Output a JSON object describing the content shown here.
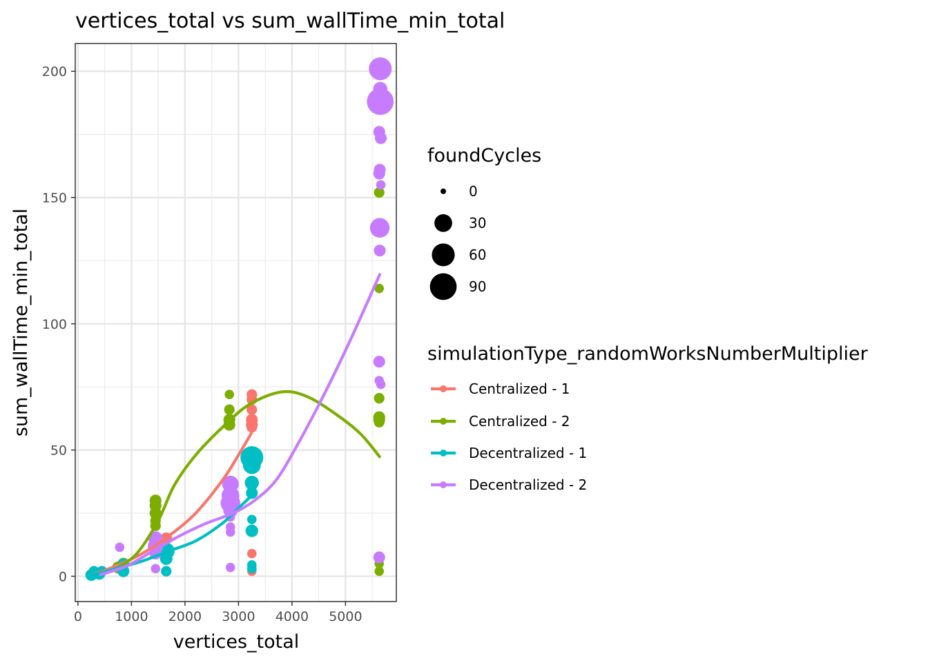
{
  "chart_data": {
    "type": "scatter",
    "title": "vertices_total  vs  sum_wallTime_min_total",
    "xlabel": "vertices_total",
    "ylabel": "sum_wallTime_min_total",
    "xlim": [
      -50,
      5950
    ],
    "ylim": [
      -10,
      211
    ],
    "x_ticks": [
      0,
      1000,
      2000,
      3000,
      4000,
      5000
    ],
    "x_tick_labels": [
      "0",
      "1000",
      "2000",
      "3000",
      "4000",
      "5000"
    ],
    "y_ticks": [
      0,
      50,
      100,
      150,
      200
    ],
    "y_tick_labels": [
      "0",
      "50",
      "100",
      "150",
      "200"
    ],
    "grid": true,
    "legend_position": "right",
    "size_legend": {
      "title": "foundCycles",
      "levels": [
        0,
        30,
        60,
        90
      ],
      "labels": [
        "0",
        "30",
        "60",
        "90"
      ]
    },
    "color_legend": {
      "title": "simulationType_randomWorksNumberMultiplier"
    },
    "series": [
      {
        "name": "Centralized - 1",
        "color": "#F8766D",
        "trend": [
          [
            250,
            0.5
          ],
          [
            700,
            4
          ],
          [
            1200,
            9
          ],
          [
            1700,
            16
          ],
          [
            2200,
            25
          ],
          [
            2700,
            38
          ],
          [
            3000,
            48
          ],
          [
            3250,
            57
          ]
        ],
        "points": [
          {
            "x": 250,
            "y": 0.5,
            "size": 5
          },
          {
            "x": 400,
            "y": 1.5,
            "size": 5
          },
          {
            "x": 800,
            "y": 3,
            "size": 5
          },
          {
            "x": 1450,
            "y": 11,
            "size": 10
          },
          {
            "x": 1650,
            "y": 15,
            "size": 8
          },
          {
            "x": 3250,
            "y": 72,
            "size": 5
          },
          {
            "x": 3250,
            "y": 70,
            "size": 5
          },
          {
            "x": 3250,
            "y": 66,
            "size": 5
          },
          {
            "x": 3250,
            "y": 62,
            "size": 8
          },
          {
            "x": 3250,
            "y": 60,
            "size": 8
          },
          {
            "x": 3250,
            "y": 59,
            "size": 5
          },
          {
            "x": 3250,
            "y": 9,
            "size": 3
          },
          {
            "x": 3250,
            "y": 2,
            "size": 3
          }
        ]
      },
      {
        "name": "Centralized - 2",
        "color": "#7CAE00",
        "trend": [
          [
            750,
            3.5
          ],
          [
            1100,
            9
          ],
          [
            1500,
            22
          ],
          [
            1800,
            36
          ],
          [
            2200,
            48
          ],
          [
            2700,
            59
          ],
          [
            3200,
            68
          ],
          [
            3800,
            73
          ],
          [
            4300,
            71
          ],
          [
            4900,
            63
          ],
          [
            5300,
            56
          ],
          [
            5650,
            47
          ]
        ],
        "points": [
          {
            "x": 250,
            "y": 0.5,
            "size": 5
          },
          {
            "x": 750,
            "y": 3.5,
            "size": 8
          },
          {
            "x": 850,
            "y": 5,
            "size": 8
          },
          {
            "x": 1450,
            "y": 30,
            "size": 8
          },
          {
            "x": 1450,
            "y": 28,
            "size": 8
          },
          {
            "x": 1450,
            "y": 25,
            "size": 8
          },
          {
            "x": 1450,
            "y": 22,
            "size": 5
          },
          {
            "x": 1450,
            "y": 20,
            "size": 5
          },
          {
            "x": 2830,
            "y": 72,
            "size": 3
          },
          {
            "x": 2830,
            "y": 66,
            "size": 5
          },
          {
            "x": 2830,
            "y": 62,
            "size": 8
          },
          {
            "x": 2830,
            "y": 60,
            "size": 8
          },
          {
            "x": 5630,
            "y": 152,
            "size": 5
          },
          {
            "x": 5630,
            "y": 114,
            "size": 3
          },
          {
            "x": 5630,
            "y": 70.5,
            "size": 5
          },
          {
            "x": 5630,
            "y": 63,
            "size": 8
          },
          {
            "x": 5630,
            "y": 62,
            "size": 8
          },
          {
            "x": 5630,
            "y": 61,
            "size": 5
          },
          {
            "x": 5630,
            "y": 7,
            "size": 3
          },
          {
            "x": 5630,
            "y": 5,
            "size": 3
          },
          {
            "x": 5630,
            "y": 2,
            "size": 3
          }
        ]
      },
      {
        "name": "Decentralized - 1",
        "color": "#00BFC4",
        "trend": [
          [
            250,
            0.5
          ],
          [
            700,
            3
          ],
          [
            1200,
            6
          ],
          [
            1700,
            10
          ],
          [
            2200,
            14
          ],
          [
            2700,
            21
          ],
          [
            3000,
            27
          ],
          [
            3250,
            32
          ]
        ],
        "points": [
          {
            "x": 250,
            "y": 0.5,
            "size": 8
          },
          {
            "x": 300,
            "y": 2,
            "size": 5
          },
          {
            "x": 400,
            "y": 1,
            "size": 8
          },
          {
            "x": 450,
            "y": 2,
            "size": 5
          },
          {
            "x": 850,
            "y": 2,
            "size": 8
          },
          {
            "x": 850,
            "y": 5,
            "size": 5
          },
          {
            "x": 1650,
            "y": 10,
            "size": 25
          },
          {
            "x": 1650,
            "y": 7,
            "size": 10
          },
          {
            "x": 1650,
            "y": 2,
            "size": 5
          },
          {
            "x": 3250,
            "y": 47,
            "size": 60
          },
          {
            "x": 3250,
            "y": 44,
            "size": 30
          },
          {
            "x": 3250,
            "y": 37,
            "size": 15
          },
          {
            "x": 3250,
            "y": 33,
            "size": 8
          },
          {
            "x": 3250,
            "y": 22.5,
            "size": 3
          },
          {
            "x": 3250,
            "y": 18,
            "size": 10
          },
          {
            "x": 3250,
            "y": 4.5,
            "size": 3
          },
          {
            "x": 3250,
            "y": 3,
            "size": 3
          }
        ]
      },
      {
        "name": "Decentralized - 2",
        "color": "#C77CFF",
        "trend": [
          [
            400,
            0.5
          ],
          [
            900,
            4
          ],
          [
            1400,
            10
          ],
          [
            1900,
            16
          ],
          [
            2400,
            21
          ],
          [
            2900,
            25
          ],
          [
            3300,
            30
          ],
          [
            3700,
            38
          ],
          [
            4100,
            52
          ],
          [
            4600,
            72
          ],
          [
            5100,
            94
          ],
          [
            5650,
            120
          ]
        ],
        "points": [
          {
            "x": 780,
            "y": 11.5,
            "size": 3
          },
          {
            "x": 1450,
            "y": 15,
            "size": 15
          },
          {
            "x": 1450,
            "y": 12,
            "size": 20
          },
          {
            "x": 1450,
            "y": 9,
            "size": 8
          },
          {
            "x": 1450,
            "y": 3,
            "size": 3
          },
          {
            "x": 2850,
            "y": 36.5,
            "size": 25
          },
          {
            "x": 2850,
            "y": 32,
            "size": 30
          },
          {
            "x": 2850,
            "y": 29,
            "size": 40
          },
          {
            "x": 2850,
            "y": 26,
            "size": 15
          },
          {
            "x": 2850,
            "y": 23.5,
            "size": 3
          },
          {
            "x": 2850,
            "y": 19.5,
            "size": 3
          },
          {
            "x": 2850,
            "y": 17.5,
            "size": 3
          },
          {
            "x": 2850,
            "y": 3.5,
            "size": 3
          },
          {
            "x": 5650,
            "y": 201,
            "size": 60
          },
          {
            "x": 5650,
            "y": 193,
            "size": 15
          },
          {
            "x": 5650,
            "y": 188,
            "size": 90
          },
          {
            "x": 5630,
            "y": 176,
            "size": 8
          },
          {
            "x": 5660,
            "y": 173.5,
            "size": 8
          },
          {
            "x": 5640,
            "y": 161,
            "size": 8
          },
          {
            "x": 5630,
            "y": 159.5,
            "size": 8
          },
          {
            "x": 5660,
            "y": 155,
            "size": 3
          },
          {
            "x": 5640,
            "y": 138,
            "size": 40
          },
          {
            "x": 5640,
            "y": 129,
            "size": 8
          },
          {
            "x": 5630,
            "y": 85,
            "size": 8
          },
          {
            "x": 5630,
            "y": 77.5,
            "size": 3
          },
          {
            "x": 5660,
            "y": 76,
            "size": 3
          },
          {
            "x": 5630,
            "y": 7.5,
            "size": 8
          }
        ]
      }
    ]
  }
}
